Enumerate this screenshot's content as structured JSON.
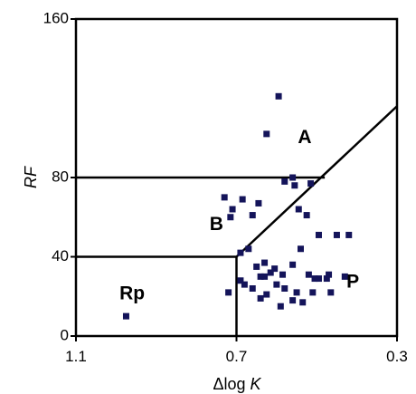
{
  "chart_data": {
    "type": "scatter",
    "xlabel": "Δlog K",
    "ylabel": "RF",
    "xlim": [
      1.1,
      0.3
    ],
    "ylim": [
      0,
      160
    ],
    "x_ticks": [
      "1.1",
      "0.7",
      "0.3"
    ],
    "x_tick_values": [
      1.1,
      0.7,
      0.3
    ],
    "y_ticks": [
      "160",
      "80",
      "40",
      "0"
    ],
    "y_tick_values": [
      160,
      80,
      40,
      0
    ],
    "grid": false,
    "colors": {
      "points": "#14145a",
      "lines": "#000000"
    },
    "regions": [
      {
        "label": "A",
        "x": 0.53,
        "y": 100
      },
      {
        "label": "B",
        "x": 0.75,
        "y": 56
      },
      {
        "label": "Rp",
        "x": 0.96,
        "y": 21
      },
      {
        "label": "P",
        "x": 0.41,
        "y": 27
      }
    ],
    "boundaries": [
      {
        "name": "boundary-top-horizontal",
        "points": [
          [
            1.1,
            80
          ],
          [
            0.48,
            80
          ]
        ]
      },
      {
        "name": "boundary-diagonal",
        "points": [
          [
            0.7,
            40
          ],
          [
            0.3,
            116
          ]
        ]
      },
      {
        "name": "boundary-lower-horizontal",
        "points": [
          [
            1.1,
            40
          ],
          [
            0.7,
            40
          ]
        ]
      },
      {
        "name": "boundary-vertical",
        "points": [
          [
            0.7,
            40
          ],
          [
            0.7,
            0
          ]
        ]
      }
    ],
    "points": {
      "x": [
        0.595,
        0.625,
        0.56,
        0.58,
        0.515,
        0.555,
        0.73,
        0.685,
        0.645,
        0.71,
        0.715,
        0.66,
        0.525,
        0.545,
        0.45,
        0.495,
        0.42,
        0.54,
        0.67,
        0.69,
        0.63,
        0.56,
        0.65,
        0.605,
        0.615,
        0.585,
        0.64,
        0.63,
        0.52,
        0.47,
        0.475,
        0.495,
        0.43,
        0.505,
        0.69,
        0.68,
        0.72,
        0.66,
        0.6,
        0.58,
        0.55,
        0.625,
        0.64,
        0.51,
        0.465,
        0.56,
        0.535,
        0.59,
        0.975
      ],
      "y": [
        121,
        102,
        80,
        78,
        77,
        76,
        70,
        69,
        67,
        64,
        60,
        61,
        61,
        64,
        51,
        51,
        51,
        44,
        44,
        42,
        37,
        36,
        35,
        34,
        32,
        31,
        30,
        30,
        31,
        31,
        29,
        29,
        30,
        29,
        28,
        26,
        22,
        24,
        26,
        24,
        22,
        21,
        19,
        22,
        22,
        18,
        17,
        15,
        10
      ]
    }
  }
}
